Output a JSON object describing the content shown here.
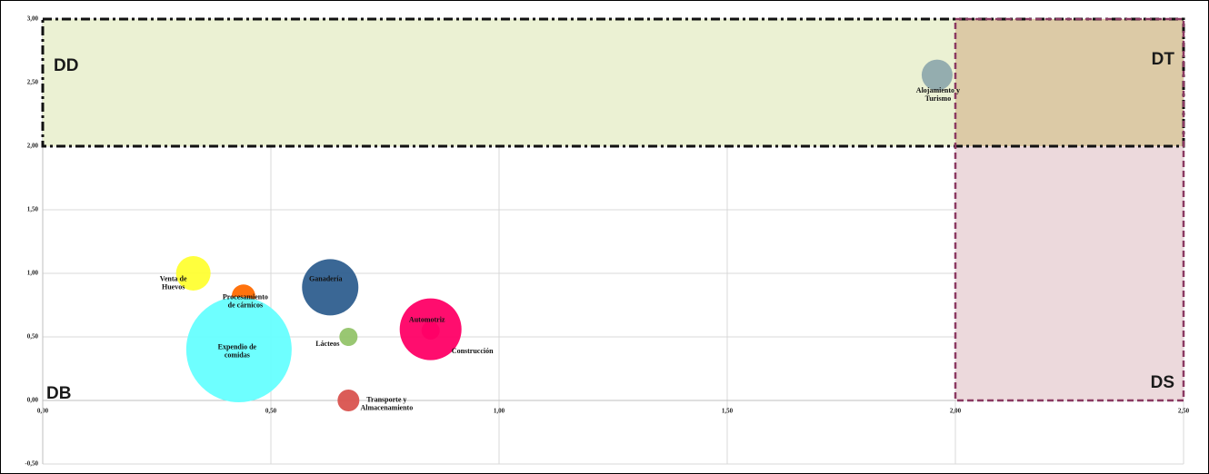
{
  "chart_data": {
    "type": "bubble",
    "xlim": [
      0,
      2.5
    ],
    "xticks": [
      {
        "value": 0,
        "label": "0,00"
      },
      {
        "value": 0.5,
        "label": "0,50"
      },
      {
        "value": 1,
        "label": "1,00"
      },
      {
        "value": 1.5,
        "label": "1,50"
      },
      {
        "value": 2,
        "label": "2,00"
      },
      {
        "value": 2.5,
        "label": "2,50"
      }
    ],
    "ylim": [
      -0.5,
      3
    ],
    "yticks": [
      {
        "value": -0.5,
        "label": "-0,50"
      },
      {
        "value": 0,
        "label": "0,00"
      },
      {
        "value": 0.5,
        "label": "0,50"
      },
      {
        "value": 1,
        "label": "1,00"
      },
      {
        "value": 1.5,
        "label": "1,50"
      },
      {
        "value": 2,
        "label": "2,00"
      },
      {
        "value": 2.5,
        "label": "2,50"
      },
      {
        "value": 3,
        "label": "3,00"
      }
    ],
    "grid": true,
    "regions": [
      {
        "label": "DD",
        "x": [
          0,
          2.5
        ],
        "y": [
          2,
          3
        ],
        "color": "#ebf1d3"
      },
      {
        "label": "DS",
        "x": [
          2,
          2.5
        ],
        "y": [
          0,
          3
        ],
        "color": "#ecd9dc"
      },
      {
        "label": "DT",
        "x": [
          2,
          2.5
        ],
        "y": [
          2,
          3
        ],
        "color": "#dccaa6"
      },
      {
        "label": "DB",
        "x": [
          0,
          2
        ],
        "y": [
          0,
          2
        ]
      }
    ],
    "points": [
      {
        "name": [
          "Venta de",
          "Huevos"
        ],
        "x": 0.33,
        "y": 1.0,
        "size": 361,
        "color": "#ffff33"
      },
      {
        "name": [
          "Procesamiento",
          "de cárnicos"
        ],
        "x": 0.44,
        "y": 0.82,
        "size": 169,
        "color": "#ff6a00"
      },
      {
        "name": [
          "Expendio de",
          "comidas"
        ],
        "x": 0.43,
        "y": 0.4,
        "size": 3364,
        "color": "#66ffff"
      },
      {
        "name": [
          "Ganadería"
        ],
        "x": 0.63,
        "y": 0.89,
        "size": 961,
        "color": "#2f5f8f"
      },
      {
        "name": [
          "Lácteos"
        ],
        "x": 0.67,
        "y": 0.5,
        "size": 100,
        "color": "#93c46a"
      },
      {
        "name": [
          "Transporte y",
          "Almacenamiento"
        ],
        "x": 0.67,
        "y": 0.0,
        "size": 144,
        "color": "#d9534f"
      },
      {
        "name": [
          "Construcción"
        ],
        "x": 0.85,
        "y": 0.55,
        "size": 100,
        "color": "#ff0066"
      },
      {
        "name": [
          "Automotriz"
        ],
        "x": 0.85,
        "y": 0.56,
        "size": 1156,
        "color": "#ff0066"
      },
      {
        "name": [
          "Alojamiento y",
          "Turismo"
        ],
        "x": 1.96,
        "y": 2.56,
        "size": 289,
        "color": "#8fa9ad"
      }
    ]
  }
}
